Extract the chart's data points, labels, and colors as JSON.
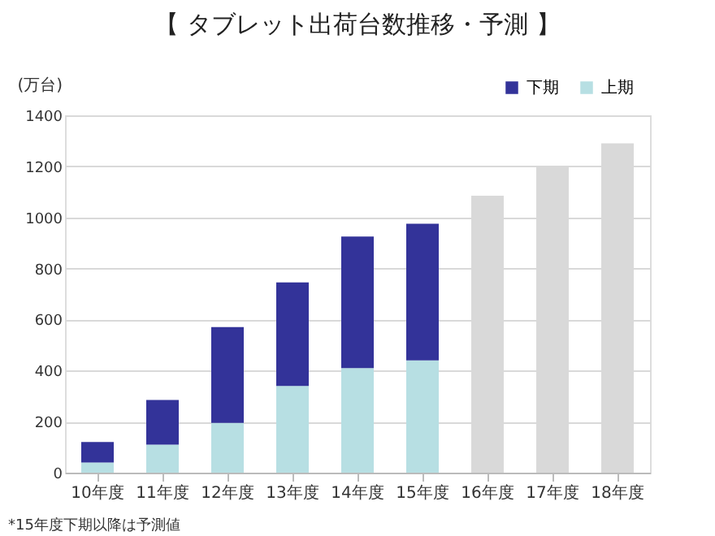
{
  "chart_data": {
    "type": "bar",
    "title": "【 タブレット出荷台数推移・予測 】",
    "ylabel": "(万台)",
    "categories": [
      "10年度",
      "11年度",
      "12年度",
      "13年度",
      "14年度",
      "15年度",
      "16年度",
      "17年度",
      "18年度"
    ],
    "stacked": true,
    "series": [
      {
        "name": "上期",
        "color": "#b7dfe3",
        "values": [
          40,
          110,
          195,
          340,
          410,
          440,
          null,
          null,
          null
        ]
      },
      {
        "name": "下期",
        "color": "#333399",
        "values": [
          80,
          175,
          375,
          405,
          515,
          535,
          null,
          null,
          null
        ]
      },
      {
        "color": "#d9d9d9",
        "values": [
          null,
          null,
          null,
          null,
          null,
          null,
          1085,
          1200,
          1290
        ]
      }
    ],
    "ylim": [
      0,
      1400
    ],
    "yticks": [
      0,
      200,
      400,
      600,
      800,
      1000,
      1200,
      1400
    ],
    "grid": "y",
    "legend": "top right",
    "annotations": [
      "*15年度下期以降は予測値"
    ]
  }
}
